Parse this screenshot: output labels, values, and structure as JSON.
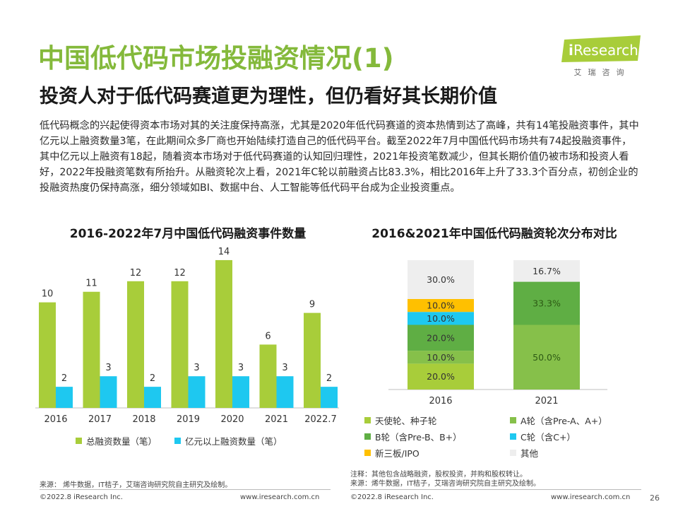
{
  "title": "中国低代码市场投融资情况(1)",
  "subtitle": "投资人对于低代码赛道更为理性，但仍看好其长期价值",
  "body": "低代码概念的兴起使得资本市场对其的关注度保持高涨，尤其是2020年低代码赛道的资本热情到达了高峰，共有14笔投融资事件，其中亿元以上融资数量3笔，在此期间众多厂商也开始陆续打造自己的低代码平台。截至2022年7月中国低代码市场共有74起投融资事件，其中亿元以上融资有18起，随着资本市场对于低代码赛道的认知回归理性，2021年投资笔数减少，但其长期价值仍被市场和投资人看好，2022年投融资笔数有所抬升。从融资轮次上看，2021年C轮以前融资占比83.3%，相比2016年上升了33.3个百分点，初创企业的投融资热度仍保持高涨，细分领域如BI、数据中台、人工智能等低代码平台成为企业投资重点。",
  "logo": {
    "brand_i": "i",
    "brand_rest": "Research",
    "cn": "艾瑞咨询"
  },
  "colors": {
    "green": "#a8cd3a",
    "cyan": "#1ec8f0",
    "title_green": "#84b93b",
    "dark_green": "#5fae44",
    "mid_green": "#86c04a",
    "yellow": "#ffc000",
    "grey": "#eeeeee"
  },
  "chart_data": [
    {
      "type": "bar",
      "title": "2016-2022年7月中国低代码融资事件数量",
      "categories": [
        "2016",
        "2017",
        "2018",
        "2019",
        "2020",
        "2021",
        "2022.7"
      ],
      "series": [
        {
          "name": "总融资数量（笔）",
          "values": [
            10,
            11,
            12,
            12,
            14,
            6,
            9
          ],
          "color": "#a8cd3a"
        },
        {
          "name": "亿元以上融资数量（笔）",
          "values": [
            2,
            3,
            2,
            3,
            3,
            3,
            2
          ],
          "color": "#1ec8f0"
        }
      ],
      "ylim": [
        0,
        15
      ],
      "grid": false,
      "legend": "bottom"
    },
    {
      "type": "bar",
      "stacked": true,
      "percent": true,
      "title": "2016&2021年中国低代码融资轮次分布对比",
      "categories": [
        "2016",
        "2021"
      ],
      "series": [
        {
          "name": "天使轮、种子轮",
          "values": [
            20.0,
            0
          ],
          "labels": [
            "20.0%",
            ""
          ],
          "color": "#a8cd3a"
        },
        {
          "name": "A轮（含Pre-A、A+）",
          "values": [
            10.0,
            50.0
          ],
          "labels": [
            "10.0%",
            "50.0%"
          ],
          "color": "#86c04a"
        },
        {
          "name": "B轮（含Pre-B、B+）",
          "values": [
            20.0,
            33.3
          ],
          "labels": [
            "20.0%",
            "33.3%"
          ],
          "color": "#5fae44"
        },
        {
          "name": "C轮（含C+）",
          "values": [
            10.0,
            0
          ],
          "labels": [
            "10.0%",
            ""
          ],
          "color": "#1ec8f0"
        },
        {
          "name": "新三板/IPO",
          "values": [
            10.0,
            0
          ],
          "labels": [
            "10.0%",
            ""
          ],
          "color": "#ffc000"
        },
        {
          "name": "其他",
          "values": [
            30.0,
            16.7
          ],
          "labels": [
            "30.0%",
            "16.7%"
          ],
          "color": "#eeeeee"
        }
      ],
      "ylim": [
        0,
        100
      ],
      "legend": "bottom"
    }
  ],
  "footer": {
    "left_source": "来源： 烯牛数据，IT桔子，艾瑞咨询研究院自主研究及绘制。",
    "right_note": "注释：其他包含战略融资，股权投资，并购和股权转让。",
    "right_source": "来源：烯牛数据，IT桔子，艾瑞咨询研究院自主研究及绘制。",
    "copyright_left": "©2022.8 iResearch Inc.",
    "url_left": "www.iresearch.com.cn",
    "copyright_right": "©2022.8 iResearch Inc.",
    "url_right": "www.iresearch.com.cn",
    "page": "26"
  }
}
